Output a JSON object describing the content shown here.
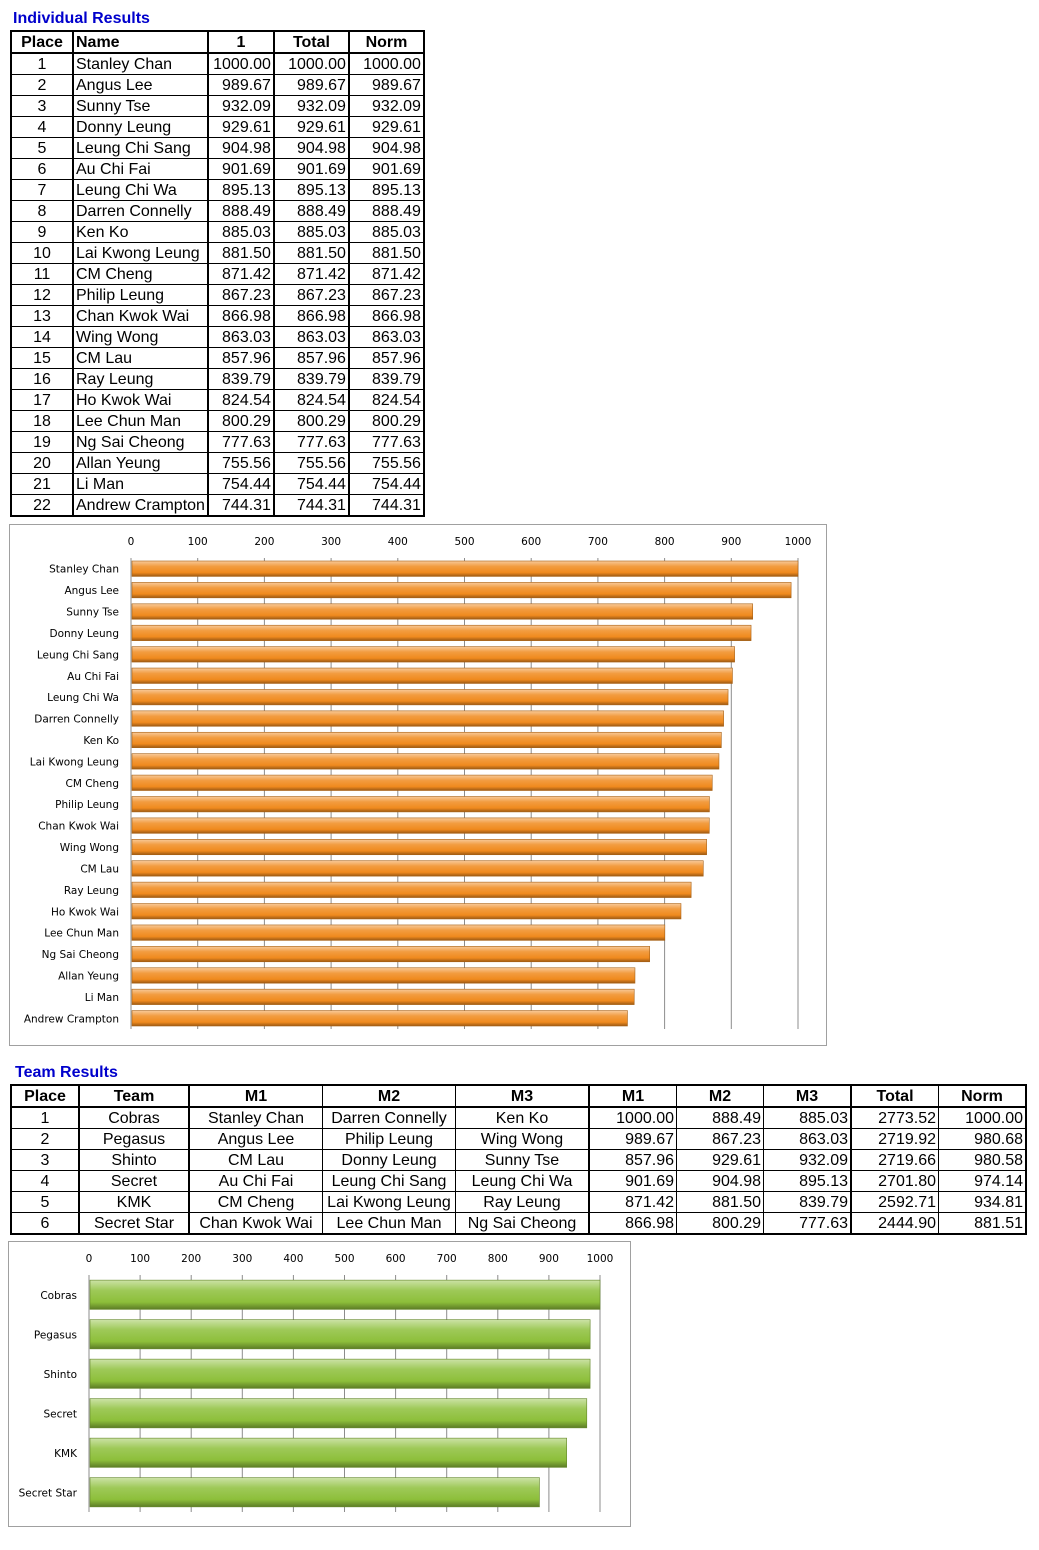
{
  "individual": {
    "title": "Individual Results",
    "headers": {
      "place": "Place",
      "name": "Name",
      "r1": "1",
      "total": "Total",
      "norm": "Norm"
    },
    "rows": [
      {
        "place": "1",
        "name": "Stanley Chan",
        "r1": "1000.00",
        "total": "1000.00",
        "norm": "1000.00"
      },
      {
        "place": "2",
        "name": "Angus Lee",
        "r1": "989.67",
        "total": "989.67",
        "norm": "989.67"
      },
      {
        "place": "3",
        "name": "Sunny Tse",
        "r1": "932.09",
        "total": "932.09",
        "norm": "932.09"
      },
      {
        "place": "4",
        "name": "Donny Leung",
        "r1": "929.61",
        "total": "929.61",
        "norm": "929.61"
      },
      {
        "place": "5",
        "name": "Leung Chi Sang",
        "r1": "904.98",
        "total": "904.98",
        "norm": "904.98"
      },
      {
        "place": "6",
        "name": "Au Chi Fai",
        "r1": "901.69",
        "total": "901.69",
        "norm": "901.69"
      },
      {
        "place": "7",
        "name": "Leung Chi Wa",
        "r1": "895.13",
        "total": "895.13",
        "norm": "895.13"
      },
      {
        "place": "8",
        "name": "Darren Connelly",
        "r1": "888.49",
        "total": "888.49",
        "norm": "888.49"
      },
      {
        "place": "9",
        "name": "Ken Ko",
        "r1": "885.03",
        "total": "885.03",
        "norm": "885.03"
      },
      {
        "place": "10",
        "name": "Lai Kwong Leung",
        "r1": "881.50",
        "total": "881.50",
        "norm": "881.50"
      },
      {
        "place": "11",
        "name": "CM Cheng",
        "r1": "871.42",
        "total": "871.42",
        "norm": "871.42"
      },
      {
        "place": "12",
        "name": "Philip Leung",
        "r1": "867.23",
        "total": "867.23",
        "norm": "867.23"
      },
      {
        "place": "13",
        "name": "Chan Kwok Wai",
        "r1": "866.98",
        "total": "866.98",
        "norm": "866.98"
      },
      {
        "place": "14",
        "name": "Wing Wong",
        "r1": "863.03",
        "total": "863.03",
        "norm": "863.03"
      },
      {
        "place": "15",
        "name": "CM Lau",
        "r1": "857.96",
        "total": "857.96",
        "norm": "857.96"
      },
      {
        "place": "16",
        "name": "Ray Leung",
        "r1": "839.79",
        "total": "839.79",
        "norm": "839.79"
      },
      {
        "place": "17",
        "name": "Ho Kwok Wai",
        "r1": "824.54",
        "total": "824.54",
        "norm": "824.54"
      },
      {
        "place": "18",
        "name": "Lee Chun Man",
        "r1": "800.29",
        "total": "800.29",
        "norm": "800.29"
      },
      {
        "place": "19",
        "name": "Ng Sai Cheong",
        "r1": "777.63",
        "total": "777.63",
        "norm": "777.63"
      },
      {
        "place": "20",
        "name": "Allan Yeung",
        "r1": "755.56",
        "total": "755.56",
        "norm": "755.56"
      },
      {
        "place": "21",
        "name": "Li Man",
        "r1": "754.44",
        "total": "754.44",
        "norm": "754.44"
      },
      {
        "place": "22",
        "name": "Andrew Crampton",
        "r1": "744.31",
        "total": "744.31",
        "norm": "744.31"
      }
    ]
  },
  "team": {
    "title": "Team Results",
    "headers": {
      "place": "Place",
      "team": "Team",
      "m1": "M1",
      "m2": "M2",
      "m3": "M3",
      "s1": "M1",
      "s2": "M2",
      "s3": "M3",
      "total": "Total",
      "norm": "Norm"
    },
    "rows": [
      {
        "place": "1",
        "team": "Cobras",
        "m1": "Stanley Chan",
        "m2": "Darren Connelly",
        "m3": "Ken Ko",
        "s1": "1000.00",
        "s2": "888.49",
        "s3": "885.03",
        "total": "2773.52",
        "norm": "1000.00"
      },
      {
        "place": "2",
        "team": "Pegasus",
        "m1": "Angus Lee",
        "m2": "Philip Leung",
        "m3": "Wing Wong",
        "s1": "989.67",
        "s2": "867.23",
        "s3": "863.03",
        "total": "2719.92",
        "norm": "980.68"
      },
      {
        "place": "3",
        "team": "Shinto",
        "m1": "CM Lau",
        "m2": "Donny Leung",
        "m3": "Sunny Tse",
        "s1": "857.96",
        "s2": "929.61",
        "s3": "932.09",
        "total": "2719.66",
        "norm": "980.58"
      },
      {
        "place": "4",
        "team": "Secret",
        "m1": "Au Chi Fai",
        "m2": "Leung Chi Sang",
        "m3": "Leung Chi Wa",
        "s1": "901.69",
        "s2": "904.98",
        "s3": "895.13",
        "total": "2701.80",
        "norm": "974.14"
      },
      {
        "place": "5",
        "team": "KMK",
        "m1": "CM Cheng",
        "m2": "Lai Kwong Leung",
        "m3": "Ray Leung",
        "s1": "871.42",
        "s2": "881.50",
        "s3": "839.79",
        "total": "2592.71",
        "norm": "934.81"
      },
      {
        "place": "6",
        "team": "Secret Star",
        "m1": "Chan Kwok Wai",
        "m2": "Lee Chun Man",
        "m3": "Ng Sai Cheong",
        "s1": "866.98",
        "s2": "800.29",
        "s3": "777.63",
        "total": "2444.90",
        "norm": "881.51"
      }
    ]
  },
  "chart_data": [
    {
      "type": "bar",
      "orientation": "horizontal",
      "title": "",
      "categories": [
        "Stanley Chan",
        "Angus Lee",
        "Sunny Tse",
        "Donny Leung",
        "Leung Chi Sang",
        "Au Chi Fai",
        "Leung Chi Wa",
        "Darren Connelly",
        "Ken Ko",
        "Lai Kwong Leung",
        "CM Cheng",
        "Philip Leung",
        "Chan Kwok Wai",
        "Wing Wong",
        "CM Lau",
        "Ray Leung",
        "Ho Kwok Wai",
        "Lee Chun Man",
        "Ng Sai Cheong",
        "Allan Yeung",
        "Li Man",
        "Andrew Crampton"
      ],
      "values": [
        1000.0,
        989.67,
        932.09,
        929.61,
        904.98,
        901.69,
        895.13,
        888.49,
        885.03,
        881.5,
        871.42,
        867.23,
        866.98,
        863.03,
        857.96,
        839.79,
        824.54,
        800.29,
        777.63,
        755.56,
        754.44,
        744.31
      ],
      "ticks": [
        "0",
        "100",
        "200",
        "300",
        "400",
        "500",
        "600",
        "700",
        "800",
        "900",
        "1000"
      ],
      "xlim": [
        0,
        1000
      ],
      "axis_position": "top",
      "grid": true,
      "color": "#f08a1e"
    },
    {
      "type": "bar",
      "orientation": "horizontal",
      "title": "",
      "categories": [
        "Cobras",
        "Pegasus",
        "Shinto",
        "Secret",
        "KMK",
        "Secret Star"
      ],
      "values": [
        1000.0,
        980.68,
        980.58,
        974.14,
        934.81,
        881.51
      ],
      "ticks": [
        "0",
        "100",
        "200",
        "300",
        "400",
        "500",
        "600",
        "700",
        "800",
        "900",
        "1000"
      ],
      "xlim": [
        0,
        1000
      ],
      "axis_position": "top",
      "grid": true,
      "color": "#8dbf3a"
    }
  ]
}
